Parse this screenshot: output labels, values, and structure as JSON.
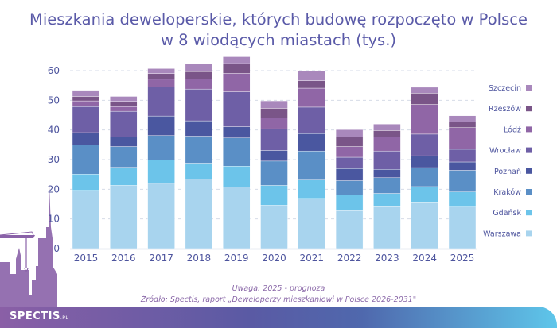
{
  "title_line1": "Mieszkania deweloperskie, których budowę rozpoczęto w Polsce",
  "title_line2": "w 8 wiodących miastach (tys.)",
  "note": "Uwaga: 2025 - prognoza",
  "source": "Źródło: Spectis, raport „Deweloperzy mieszkaniowi w Polsce 2026-2031\"",
  "logo": {
    "main": "SPECTIS",
    "suffix": ".PL"
  },
  "chart_data": {
    "type": "bar",
    "stacked": true,
    "title": "Mieszkania deweloperskie, których budowę rozpoczęto w Polsce w 8 wiodących miastach (tys.)",
    "xlabel": "",
    "ylabel": "",
    "ylim": [
      0,
      65
    ],
    "yticks": [
      0,
      10,
      20,
      30,
      40,
      50,
      60
    ],
    "grid": "horizontal dashed",
    "legend_position": "right",
    "categories": [
      "2015",
      "2016",
      "2017",
      "2018",
      "2019",
      "2020",
      "2021",
      "2022",
      "2023",
      "2024",
      "2025"
    ],
    "series": [
      {
        "name": "Warszawa",
        "color": "#a8d4ee",
        "values": [
          19.6,
          21.3,
          22.0,
          23.5,
          20.8,
          14.6,
          16.9,
          12.8,
          14.1,
          15.7,
          14.0
        ]
      },
      {
        "name": "Gdańsk",
        "color": "#6cc4ea",
        "values": [
          5.5,
          6.1,
          7.8,
          5.3,
          7.0,
          6.7,
          6.2,
          5.2,
          4.5,
          5.2,
          5.1
        ]
      },
      {
        "name": "Kraków",
        "color": "#5a8fc6",
        "values": [
          9.9,
          7.0,
          8.3,
          9.1,
          9.5,
          8.2,
          9.8,
          4.9,
          5.3,
          6.4,
          7.3
        ]
      },
      {
        "name": "Poznań",
        "color": "#4a57a0",
        "values": [
          4.1,
          3.3,
          6.6,
          5.2,
          3.8,
          3.6,
          5.9,
          4.1,
          2.8,
          4.0,
          2.8
        ]
      },
      {
        "name": "Wrocław",
        "color": "#6e5fa6",
        "values": [
          8.8,
          8.6,
          9.8,
          10.7,
          11.8,
          7.3,
          8.9,
          3.8,
          6.2,
          7.3,
          4.3
        ]
      },
      {
        "name": "Łódź",
        "color": "#9066a6",
        "values": [
          1.9,
          1.6,
          2.6,
          3.4,
          6.2,
          3.7,
          6.4,
          3.6,
          4.8,
          10.0,
          7.3
        ]
      },
      {
        "name": "Rzeszów",
        "color": "#7a5588",
        "values": [
          1.5,
          1.7,
          1.9,
          2.5,
          3.3,
          3.2,
          2.5,
          3.3,
          2.1,
          3.8,
          1.9
        ]
      },
      {
        "name": "Szczecin",
        "color": "#a988bc",
        "values": [
          2.1,
          1.7,
          1.7,
          2.7,
          2.3,
          2.5,
          3.2,
          2.4,
          2.2,
          2.0,
          2.1
        ]
      }
    ]
  }
}
